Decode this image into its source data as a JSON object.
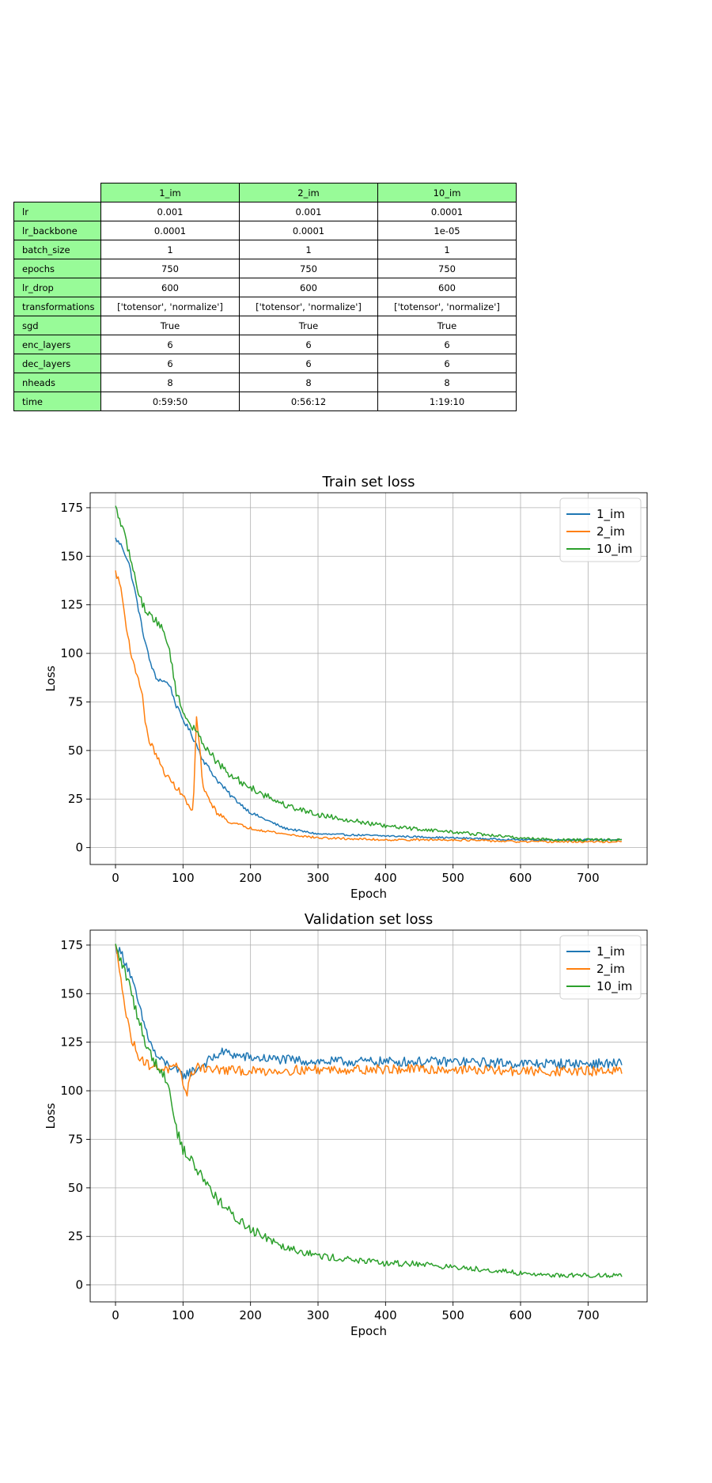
{
  "table": {
    "columns": [
      "1_im",
      "2_im",
      "10_im"
    ],
    "rows": [
      {
        "label": "lr",
        "values": [
          "0.001",
          "0.001",
          "0.0001"
        ]
      },
      {
        "label": "lr_backbone",
        "values": [
          "0.0001",
          "0.0001",
          "1e-05"
        ]
      },
      {
        "label": "batch_size",
        "values": [
          "1",
          "1",
          "1"
        ]
      },
      {
        "label": "epochs",
        "values": [
          "750",
          "750",
          "750"
        ]
      },
      {
        "label": "lr_drop",
        "values": [
          "600",
          "600",
          "600"
        ]
      },
      {
        "label": "transformations",
        "values": [
          "['totensor', 'normalize']",
          "['totensor', 'normalize']",
          "['totensor', 'normalize']"
        ]
      },
      {
        "label": "sgd",
        "values": [
          "True",
          "True",
          "True"
        ]
      },
      {
        "label": "enc_layers",
        "values": [
          "6",
          "6",
          "6"
        ]
      },
      {
        "label": "dec_layers",
        "values": [
          "6",
          "6",
          "6"
        ]
      },
      {
        "label": "nheads",
        "values": [
          "8",
          "8",
          "8"
        ]
      },
      {
        "label": "time",
        "values": [
          "0:59:50",
          "0:56:12",
          "1:19:10"
        ]
      }
    ]
  },
  "chart_data": [
    {
      "type": "line",
      "title": "Train set loss",
      "xlabel": "Epoch",
      "ylabel": "Loss",
      "xlim": [
        -37.5,
        787.5
      ],
      "ylim": [
        -8.7,
        182.7
      ],
      "xticks": [
        0,
        100,
        200,
        300,
        400,
        500,
        600,
        700
      ],
      "yticks": [
        0,
        25,
        50,
        75,
        100,
        125,
        150,
        175
      ],
      "grid": true,
      "legend_position": "upper right",
      "series": [
        {
          "name": "1_im",
          "color": "#1f77b4",
          "noise": 1.2,
          "x": [
            0,
            10,
            20,
            30,
            40,
            50,
            60,
            70,
            80,
            90,
            100,
            110,
            120,
            130,
            150,
            170,
            200,
            250,
            300,
            400,
            500,
            600,
            650,
            750
          ],
          "y": [
            159,
            155,
            146,
            130,
            112,
            97,
            87,
            86,
            84,
            73,
            66,
            60,
            53,
            45,
            35,
            27,
            18,
            10,
            7,
            6,
            5,
            4,
            4,
            4
          ]
        },
        {
          "name": "2_im",
          "color": "#ff7f0e",
          "noise": 1.5,
          "x": [
            0,
            8,
            15,
            25,
            35,
            40,
            45,
            50,
            60,
            70,
            80,
            90,
            100,
            110,
            115,
            120,
            125,
            130,
            140,
            150,
            170,
            200,
            250,
            300,
            400,
            500,
            600,
            650,
            750
          ],
          "y": [
            142,
            134,
            116,
            96,
            86,
            78,
            62,
            55,
            48,
            40,
            35,
            31,
            27,
            20,
            19,
            67,
            50,
            30,
            24,
            18,
            13,
            10,
            7,
            5,
            4,
            4,
            3,
            3,
            3
          ]
        },
        {
          "name": "10_im",
          "color": "#2ca02c",
          "noise": 2.0,
          "x": [
            0,
            10,
            20,
            30,
            40,
            50,
            60,
            70,
            80,
            90,
            100,
            110,
            120,
            130,
            150,
            170,
            200,
            250,
            300,
            350,
            400,
            500,
            600,
            650,
            750
          ],
          "y": [
            175,
            165,
            152,
            137,
            125,
            120,
            117,
            112,
            102,
            80,
            70,
            64,
            59,
            54,
            44,
            37,
            31,
            22,
            17,
            14,
            11,
            8,
            5,
            4,
            4
          ]
        }
      ]
    },
    {
      "type": "line",
      "title": "Validation set loss",
      "xlabel": "Epoch",
      "ylabel": "Loss",
      "xlim": [
        -37.5,
        787.5
      ],
      "ylim": [
        -8.7,
        182.7
      ],
      "xticks": [
        0,
        100,
        200,
        300,
        400,
        500,
        600,
        700
      ],
      "yticks": [
        0,
        25,
        50,
        75,
        100,
        125,
        150,
        175
      ],
      "grid": true,
      "legend_position": "upper right",
      "series": [
        {
          "name": "1_im",
          "color": "#1f77b4",
          "noise": 2.5,
          "x": [
            0,
            10,
            20,
            30,
            40,
            50,
            60,
            70,
            80,
            90,
            100,
            120,
            140,
            160,
            180,
            200,
            250,
            300,
            400,
            500,
            600,
            650,
            750
          ],
          "y": [
            174,
            170,
            162,
            150,
            137,
            126,
            118,
            115,
            113,
            110,
            108,
            111,
            116,
            120,
            118,
            117,
            116,
            115,
            115,
            115,
            114,
            114,
            114
          ]
        },
        {
          "name": "2_im",
          "color": "#ff7f0e",
          "noise": 2.5,
          "x": [
            0,
            8,
            15,
            25,
            35,
            45,
            60,
            80,
            90,
            100,
            105,
            110,
            120,
            140,
            200,
            300,
            400,
            500,
            600,
            700,
            750
          ],
          "y": [
            174,
            160,
            140,
            125,
            118,
            114,
            112,
            111,
            112,
            105,
            98,
            106,
            113,
            111,
            110,
            111,
            111,
            111,
            110,
            110,
            110
          ]
        },
        {
          "name": "10_im",
          "color": "#2ca02c",
          "noise": 3.0,
          "x": [
            0,
            10,
            20,
            30,
            40,
            50,
            60,
            70,
            80,
            85,
            90,
            100,
            110,
            120,
            140,
            160,
            180,
            200,
            250,
            300,
            350,
            400,
            450,
            500,
            550,
            600,
            650,
            700,
            750
          ],
          "y": [
            174,
            165,
            155,
            142,
            130,
            120,
            114,
            110,
            100,
            92,
            80,
            70,
            65,
            60,
            50,
            40,
            34,
            29,
            20,
            15,
            13,
            11,
            11,
            9,
            8,
            6,
            5,
            5,
            5
          ]
        }
      ]
    }
  ]
}
